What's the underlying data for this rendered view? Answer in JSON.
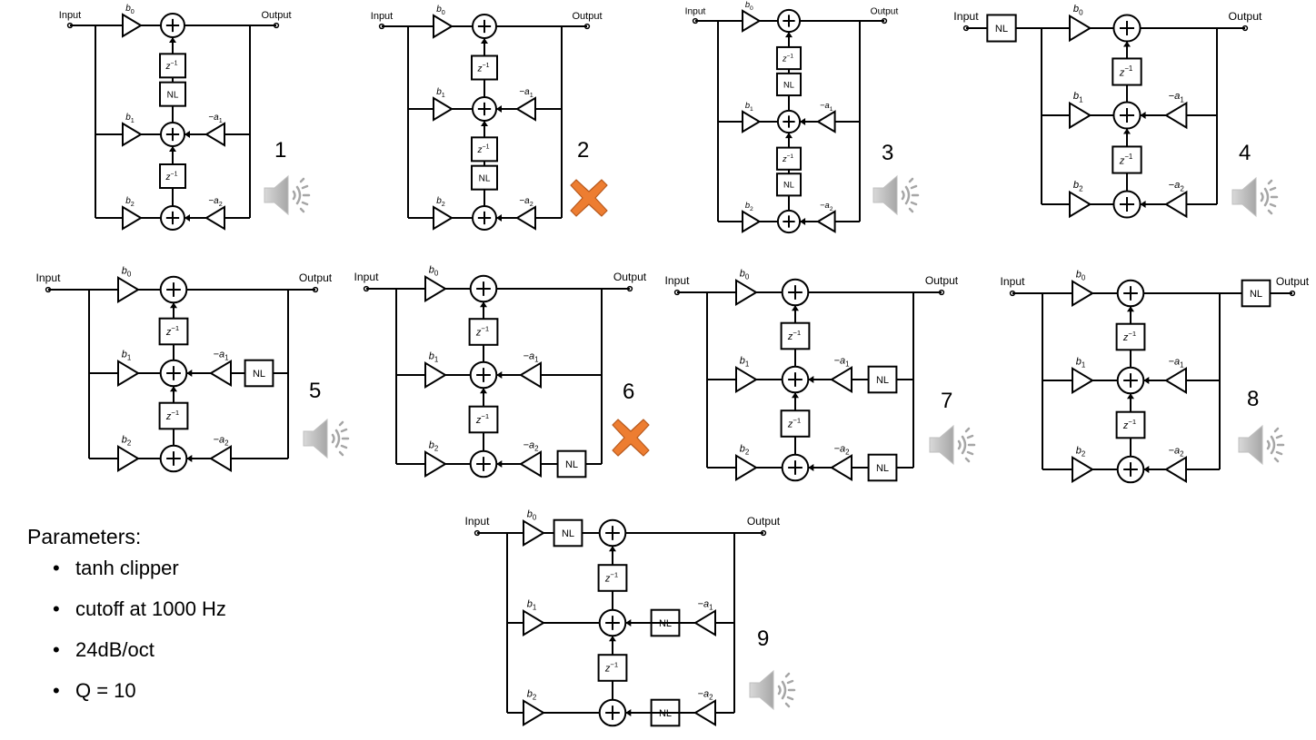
{
  "labels": {
    "input": "Input",
    "output": "Output",
    "nl": "NL",
    "delay_base": "z",
    "delay_exp": "−1",
    "b": "b",
    "minus_a": "−a",
    "sub0": "0",
    "sub1": "1",
    "sub2": "2"
  },
  "diagrams": [
    {
      "number": "1",
      "status": "speaker-icon",
      "nl_positions": [
        "upper-delay"
      ]
    },
    {
      "number": "2",
      "status": "x-mark-icon",
      "nl_positions": [
        "lower-delay"
      ]
    },
    {
      "number": "3",
      "status": "speaker-icon",
      "nl_positions": [
        "upper-delay",
        "lower-delay"
      ]
    },
    {
      "number": "4",
      "status": "speaker-icon",
      "nl_positions": [
        "input"
      ]
    },
    {
      "number": "5",
      "status": "speaker-icon",
      "nl_positions": [
        "feedback-a1"
      ]
    },
    {
      "number": "6",
      "status": "x-mark-icon",
      "nl_positions": [
        "feedback-a2"
      ]
    },
    {
      "number": "7",
      "status": "speaker-icon",
      "nl_positions": [
        "feedback-a1",
        "feedback-a2"
      ]
    },
    {
      "number": "8",
      "status": "speaker-icon",
      "nl_positions": [
        "output"
      ]
    },
    {
      "number": "9",
      "status": "speaker-icon",
      "nl_positions": [
        "b0-path",
        "a1-path",
        "a2-path"
      ]
    }
  ],
  "parameters": {
    "title": "Parameters:",
    "items": [
      "tanh clipper",
      "cutoff at 1000 Hz",
      "24dB/oct",
      "Q = 10"
    ]
  },
  "colors": {
    "line": "#000000",
    "x_mark": "#ed7d31",
    "x_mark_stroke": "#b85a1e",
    "speaker": "#a6a6a6"
  }
}
